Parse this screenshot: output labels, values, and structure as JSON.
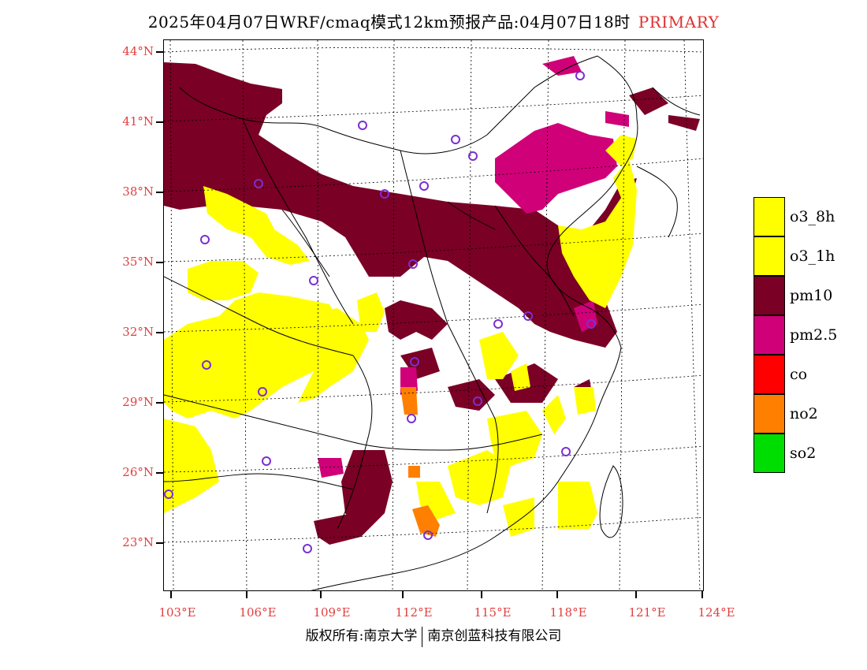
{
  "title": {
    "main": "2025年04月07日WRF/cmaq模式12km预报产品:04月07日18时",
    "product": "PRIMARY"
  },
  "axes": {
    "lat_labels": [
      "44°N",
      "41°N",
      "38°N",
      "35°N",
      "32°N",
      "29°N",
      "26°N",
      "23°N"
    ],
    "lon_labels": [
      "103°E",
      "106°E",
      "109°E",
      "112°E",
      "115°E",
      "118°E",
      "121°E",
      "124°E"
    ]
  },
  "legend": [
    {
      "label": "o3_8h",
      "color": "#ffff00"
    },
    {
      "label": "o3_1h",
      "color": "#ffff00"
    },
    {
      "label": "pm10",
      "color": "#7a0025"
    },
    {
      "label": "pm2.5",
      "color": "#d00078"
    },
    {
      "label": "co",
      "color": "#ff0000"
    },
    {
      "label": "no2",
      "color": "#ff7f00"
    },
    {
      "label": "so2",
      "color": "#00dd00"
    }
  ],
  "footer": {
    "left": "版权所有:南京大学",
    "right": "南京创蓝科技有限公司"
  }
}
